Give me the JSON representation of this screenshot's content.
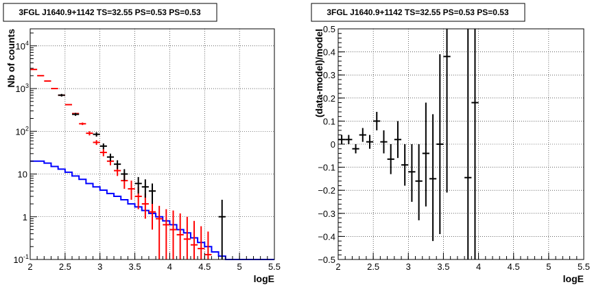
{
  "chart_data": [
    {
      "type": "histogram",
      "title": "3FGL J1640.9+1142 TS=32.55 PS=0.53 PS=0.53",
      "xlabel": "logE",
      "ylabel": "Nb of counts",
      "xlim": [
        2,
        5.5
      ],
      "ylim": [
        0.1,
        25000
      ],
      "yscale": "log",
      "grid": true,
      "x_ticks": [
        "2",
        "2.5",
        "3",
        "3.5",
        "4",
        "4.5",
        "5",
        "5.5"
      ],
      "y_ticks": [
        {
          "value": 0.1,
          "label": "10",
          "exp": "-1"
        },
        {
          "value": 1,
          "label": "1",
          "exp": ""
        },
        {
          "value": 10,
          "label": "10",
          "exp": ""
        },
        {
          "value": 100,
          "label": "10",
          "exp": "2"
        },
        {
          "value": 1000,
          "label": "10",
          "exp": "3"
        },
        {
          "value": 10000,
          "label": "10",
          "exp": "4"
        }
      ],
      "series": [
        {
          "kind": "step",
          "color": "#0000ff",
          "bin_edges": [
            2.0,
            2.1,
            2.2,
            2.3,
            2.4,
            2.5,
            2.6,
            2.7,
            2.8,
            2.9,
            3.0,
            3.1,
            3.2,
            3.3,
            3.4,
            3.5,
            3.6,
            3.7,
            3.8,
            3.9,
            4.0,
            4.1,
            4.2,
            4.3,
            4.4,
            4.5,
            4.6,
            4.7,
            4.8,
            4.9,
            5.0,
            5.1,
            5.2,
            5.3,
            5.4,
            5.5
          ],
          "values": [
            20,
            20,
            18,
            15,
            13,
            11,
            9,
            7.5,
            6,
            5,
            4.2,
            3.5,
            3,
            2.5,
            2,
            1.7,
            1.4,
            1.2,
            1.0,
            0.8,
            0.65,
            0.5,
            0.42,
            0.32,
            0.25,
            0.2,
            0.15,
            0.12,
            0.1,
            0.1,
            0.1,
            0.1,
            0.1,
            0.1,
            0.1
          ]
        },
        {
          "kind": "errorbar",
          "color": "#ff0000",
          "points": [
            {
              "x": 2.05,
              "y": 2800,
              "lo": 2800,
              "hi": 2800
            },
            {
              "x": 2.15,
              "y": 2000,
              "lo": 2000,
              "hi": 2000
            },
            {
              "x": 2.25,
              "y": 1500,
              "lo": 1500,
              "hi": 1500
            },
            {
              "x": 2.35,
              "y": 1000,
              "lo": 1000,
              "hi": 1000
            },
            {
              "x": 2.45,
              "y": 700,
              "lo": 700,
              "hi": 700
            },
            {
              "x": 2.55,
              "y": 420,
              "lo": 420,
              "hi": 420
            },
            {
              "x": 2.65,
              "y": 260,
              "lo": 260,
              "hi": 260
            },
            {
              "x": 2.75,
              "y": 150,
              "lo": 140,
              "hi": 160
            },
            {
              "x": 2.85,
              "y": 90,
              "lo": 80,
              "hi": 100
            },
            {
              "x": 2.95,
              "y": 55,
              "lo": 48,
              "hi": 62
            },
            {
              "x": 3.05,
              "y": 32,
              "lo": 26,
              "hi": 38
            },
            {
              "x": 3.15,
              "y": 20,
              "lo": 16,
              "hi": 25
            },
            {
              "x": 3.25,
              "y": 12,
              "lo": 9,
              "hi": 16
            },
            {
              "x": 3.35,
              "y": 7,
              "lo": 4.5,
              "hi": 10
            },
            {
              "x": 3.45,
              "y": 4.5,
              "lo": 2.5,
              "hi": 7
            },
            {
              "x": 3.55,
              "y": 3,
              "lo": 1.5,
              "hi": 5
            },
            {
              "x": 3.65,
              "y": 2,
              "lo": 0.9,
              "hi": 3.5
            },
            {
              "x": 3.75,
              "y": 1.3,
              "lo": 0.5,
              "hi": 2.5
            },
            {
              "x": 3.85,
              "y": 0.9,
              "lo": 0.1,
              "hi": 1.8
            },
            {
              "x": 3.95,
              "y": 0.65,
              "lo": 0.1,
              "hi": 1.5
            },
            {
              "x": 4.05,
              "y": 0.5,
              "lo": 0.1,
              "hi": 1.4
            },
            {
              "x": 4.15,
              "y": 0.38,
              "lo": 0.1,
              "hi": 1.2
            },
            {
              "x": 4.25,
              "y": 0.3,
              "lo": 0.1,
              "hi": 1.0
            },
            {
              "x": 4.35,
              "y": 0.22,
              "lo": 0.1,
              "hi": 0.8
            },
            {
              "x": 4.45,
              "y": 0.18,
              "lo": 0.1,
              "hi": 0.6
            },
            {
              "x": 4.55,
              "y": 0.13,
              "lo": 0.1,
              "hi": 0.45
            }
          ]
        },
        {
          "kind": "errorbar",
          "color": "#000000",
          "points": [
            {
              "x": 2.45,
              "y": 700,
              "lo": 650,
              "hi": 750
            },
            {
              "x": 2.65,
              "y": 250,
              "lo": 230,
              "hi": 270
            },
            {
              "x": 2.95,
              "y": 85,
              "lo": 75,
              "hi": 95
            },
            {
              "x": 3.05,
              "y": 45,
              "lo": 38,
              "hi": 52
            },
            {
              "x": 3.15,
              "y": 25,
              "lo": 20,
              "hi": 30
            },
            {
              "x": 3.25,
              "y": 17,
              "lo": 13,
              "hi": 21
            },
            {
              "x": 3.35,
              "y": 10,
              "lo": 7,
              "hi": 13
            },
            {
              "x": 3.55,
              "y": 6,
              "lo": 3.5,
              "hi": 8.5
            },
            {
              "x": 3.65,
              "y": 5,
              "lo": 2.8,
              "hi": 7.5
            },
            {
              "x": 3.75,
              "y": 4,
              "lo": 2,
              "hi": 6
            },
            {
              "x": 4.75,
              "y": 1,
              "lo": 0.1,
              "hi": 2.5
            }
          ]
        }
      ]
    },
    {
      "type": "scatter",
      "title": "3FGL J1640.9+1142 TS=32.55 PS=0.53 PS=0.53",
      "xlabel": "logE",
      "ylabel": "(data-model)/model",
      "xlim": [
        2,
        5.5
      ],
      "ylim": [
        -0.5,
        0.5
      ],
      "grid": true,
      "x_ticks": [
        "2",
        "2.5",
        "3",
        "3.5",
        "4",
        "4.5",
        "5",
        "5.5"
      ],
      "y_ticks": [
        "−0.5",
        "−0.4",
        "−0.3",
        "−0.2",
        "−0.1",
        "0",
        "0.1",
        "0.2",
        "0.3",
        "0.4",
        "0.5"
      ],
      "series": [
        {
          "kind": "errorbar",
          "color": "#000000",
          "points": [
            {
              "x": 2.05,
              "y": 0.02,
              "lo": 0.0,
              "hi": 0.04
            },
            {
              "x": 2.15,
              "y": 0.02,
              "lo": 0.0,
              "hi": 0.04
            },
            {
              "x": 2.25,
              "y": -0.02,
              "lo": -0.04,
              "hi": 0.0
            },
            {
              "x": 2.35,
              "y": 0.04,
              "lo": 0.01,
              "hi": 0.07
            },
            {
              "x": 2.45,
              "y": 0.01,
              "lo": -0.02,
              "hi": 0.04
            },
            {
              "x": 2.55,
              "y": 0.1,
              "lo": 0.06,
              "hi": 0.14
            },
            {
              "x": 2.65,
              "y": 0.01,
              "lo": -0.04,
              "hi": 0.06
            },
            {
              "x": 2.75,
              "y": -0.065,
              "lo": -0.13,
              "hi": 0.0
            },
            {
              "x": 2.85,
              "y": 0.02,
              "lo": -0.06,
              "hi": 0.1
            },
            {
              "x": 2.95,
              "y": -0.09,
              "lo": -0.18,
              "hi": 0.0
            },
            {
              "x": 3.05,
              "y": -0.12,
              "lo": -0.25,
              "hi": 0.0
            },
            {
              "x": 3.15,
              "y": -0.16,
              "lo": -0.33,
              "hi": 0.0
            },
            {
              "x": 3.25,
              "y": -0.04,
              "lo": -0.27,
              "hi": 0.18
            },
            {
              "x": 3.35,
              "y": -0.15,
              "lo": -0.42,
              "hi": 0.13
            },
            {
              "x": 3.45,
              "y": 0.0,
              "lo": -0.39,
              "hi": 0.39
            },
            {
              "x": 3.55,
              "y": 0.38,
              "lo": -0.21,
              "hi": 0.5
            },
            {
              "x": 3.85,
              "y": -0.145,
              "lo": -0.5,
              "hi": 0.5
            },
            {
              "x": 3.95,
              "y": 0.18,
              "lo": -0.5,
              "hi": 0.5
            }
          ]
        }
      ]
    }
  ]
}
